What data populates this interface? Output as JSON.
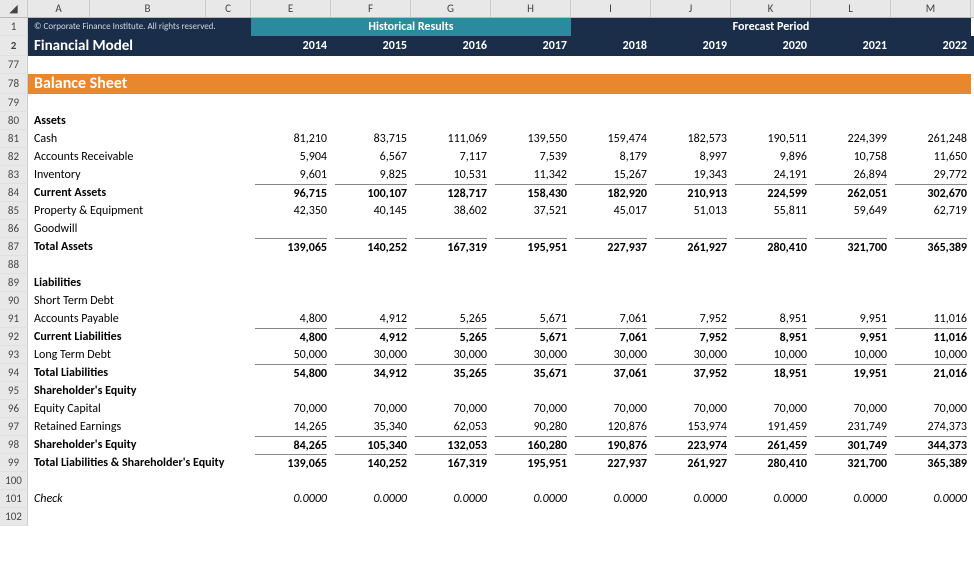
{
  "colLetters": [
    "A",
    "B",
    "C",
    "E",
    "F",
    "G",
    "H",
    "I",
    "J",
    "K",
    "L",
    "M"
  ],
  "copyright": "© Corporate Finance Institute. All rights reserved.",
  "modelTitle": "Financial Model",
  "historicalLabel": "Historical Results",
  "forecastLabel": "Forecast Period",
  "years": [
    "2014",
    "2015",
    "2016",
    "2017",
    "2018",
    "2019",
    "2020",
    "2021",
    "2022"
  ],
  "sectionTitle": "Balance Sheet",
  "rowNumbersStart": 77,
  "colors": {
    "darkNavy": "#1a2e4a",
    "teal": "#2b8a9e",
    "orange": "#e8872e",
    "headerGrey": "#e8e8e8"
  },
  "rows": [
    {
      "n": 77,
      "type": "blank"
    },
    {
      "n": 78,
      "type": "section"
    },
    {
      "n": 79,
      "type": "blank"
    },
    {
      "n": 80,
      "type": "head",
      "label": "Assets"
    },
    {
      "n": 81,
      "type": "data",
      "label": "Cash",
      "v": [
        "81,210",
        "83,715",
        "111,069",
        "139,550",
        "159,474",
        "182,573",
        "190,511",
        "224,399",
        "261,248"
      ]
    },
    {
      "n": 82,
      "type": "data",
      "label": "Accounts Receivable",
      "v": [
        "5,904",
        "6,567",
        "7,117",
        "7,539",
        "8,179",
        "8,997",
        "9,896",
        "10,758",
        "11,650"
      ]
    },
    {
      "n": 83,
      "type": "data",
      "label": "Inventory",
      "v": [
        "9,601",
        "9,825",
        "10,531",
        "11,342",
        "15,267",
        "19,343",
        "24,191",
        "26,894",
        "29,772"
      ]
    },
    {
      "n": 84,
      "type": "subtotal",
      "label": "Current Assets",
      "v": [
        "96,715",
        "100,107",
        "128,717",
        "158,430",
        "182,920",
        "210,913",
        "224,599",
        "262,051",
        "302,670"
      ]
    },
    {
      "n": 85,
      "type": "data",
      "label": "Property & Equipment",
      "v": [
        "42,350",
        "40,145",
        "38,602",
        "37,521",
        "45,017",
        "51,013",
        "55,811",
        "59,649",
        "62,719"
      ]
    },
    {
      "n": 86,
      "type": "data",
      "label": "Goodwill",
      "v": [
        "",
        "",
        "",
        "",
        "",
        "",
        "",
        "",
        ""
      ]
    },
    {
      "n": 87,
      "type": "grand",
      "label": "Total Assets",
      "v": [
        "139,065",
        "140,252",
        "167,319",
        "195,951",
        "227,937",
        "261,927",
        "280,410",
        "321,700",
        "365,389"
      ]
    },
    {
      "n": 88,
      "type": "blank"
    },
    {
      "n": 89,
      "type": "head",
      "label": "Liabilities"
    },
    {
      "n": 90,
      "type": "data",
      "label": "Short Term Debt",
      "v": [
        "",
        "",
        "",
        "",
        "",
        "",
        "",
        "",
        ""
      ]
    },
    {
      "n": 91,
      "type": "data",
      "label": "Accounts Payable",
      "v": [
        "4,800",
        "4,912",
        "5,265",
        "5,671",
        "7,061",
        "7,952",
        "8,951",
        "9,951",
        "11,016"
      ]
    },
    {
      "n": 92,
      "type": "subtotal",
      "label": "Current Liabilities",
      "v": [
        "4,800",
        "4,912",
        "5,265",
        "5,671",
        "7,061",
        "7,952",
        "8,951",
        "9,951",
        "11,016"
      ]
    },
    {
      "n": 93,
      "type": "data",
      "label": "Long Term Debt",
      "v": [
        "50,000",
        "30,000",
        "30,000",
        "30,000",
        "30,000",
        "30,000",
        "10,000",
        "10,000",
        "10,000"
      ]
    },
    {
      "n": 94,
      "type": "grand",
      "label": "Total Liabilities",
      "v": [
        "54,800",
        "34,912",
        "35,265",
        "35,671",
        "37,061",
        "37,952",
        "18,951",
        "19,951",
        "21,016"
      ]
    },
    {
      "n": 95,
      "type": "head",
      "label": "Shareholder's Equity"
    },
    {
      "n": 96,
      "type": "data",
      "label": "Equity Capital",
      "v": [
        "70,000",
        "70,000",
        "70,000",
        "70,000",
        "70,000",
        "70,000",
        "70,000",
        "70,000",
        "70,000"
      ]
    },
    {
      "n": 97,
      "type": "data",
      "label": "Retained Earnings",
      "v": [
        "14,265",
        "35,340",
        "62,053",
        "90,280",
        "120,876",
        "153,974",
        "191,459",
        "231,749",
        "274,373"
      ]
    },
    {
      "n": 98,
      "type": "subtotal",
      "label": "Shareholder's Equity",
      "v": [
        "84,265",
        "105,340",
        "132,053",
        "160,280",
        "190,876",
        "223,974",
        "261,459",
        "301,749",
        "344,373"
      ]
    },
    {
      "n": 99,
      "type": "grand",
      "label": "Total Liabilities & Shareholder's Equity",
      "v": [
        "139,065",
        "140,252",
        "167,319",
        "195,951",
        "227,937",
        "261,927",
        "280,410",
        "321,700",
        "365,389"
      ]
    },
    {
      "n": 100,
      "type": "blank"
    },
    {
      "n": 101,
      "type": "check",
      "label": "Check",
      "v": [
        "0.0000",
        "0.0000",
        "0.0000",
        "0.0000",
        "0.0000",
        "0.0000",
        "0.0000",
        "0.0000",
        "0.0000"
      ]
    },
    {
      "n": 102,
      "type": "blank"
    }
  ]
}
